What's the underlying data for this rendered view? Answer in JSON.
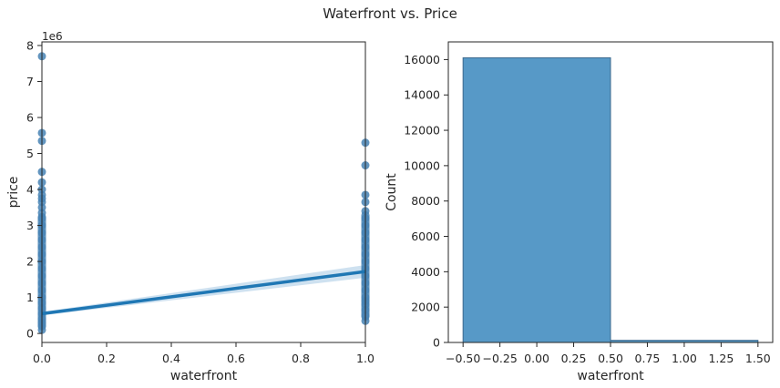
{
  "figure": {
    "title": "Waterfront vs. Price"
  },
  "chart_data": [
    {
      "type": "scatter",
      "xlabel": "waterfront",
      "ylabel": "price",
      "scale_label": "1e6",
      "xlim": [
        0,
        1
      ],
      "ylim": [
        -0.25,
        8.1
      ],
      "x_ticks": [
        0.0,
        0.2,
        0.4,
        0.6,
        0.8,
        1.0
      ],
      "x_tick_labels": [
        "0.0",
        "0.2",
        "0.4",
        "0.6",
        "0.8",
        "1.0"
      ],
      "y_ticks": [
        0,
        1,
        2,
        3,
        4,
        5,
        6,
        7,
        8
      ],
      "y_tick_labels": [
        "0",
        "1",
        "2",
        "3",
        "4",
        "5",
        "6",
        "7",
        "8"
      ],
      "grid": false,
      "point_color": "#4682b4",
      "line_color": "#1f77b4",
      "band_color": "#aecde6",
      "series": [
        {
          "x": [
            0,
            0,
            0,
            0,
            0,
            0,
            0,
            0,
            0,
            0,
            0,
            0,
            0,
            0,
            0,
            0,
            0,
            0,
            0,
            0,
            0,
            0,
            0,
            0,
            0,
            0,
            0,
            0,
            0,
            0,
            1,
            1,
            1,
            1,
            1,
            1,
            1,
            1,
            1,
            1,
            1,
            1,
            1,
            1,
            1,
            1,
            1,
            1,
            1,
            1,
            1,
            1
          ],
          "y": [
            7.7,
            5.57,
            5.35,
            4.49,
            4.2,
            4.0,
            3.85,
            3.75,
            3.65,
            3.5,
            3.35,
            3.2,
            3.0,
            2.8,
            2.6,
            2.4,
            2.2,
            2.0,
            1.8,
            1.6,
            1.4,
            1.2,
            1.0,
            0.85,
            0.7,
            0.55,
            0.4,
            0.3,
            0.2,
            0.1,
            5.3,
            4.67,
            3.85,
            3.65,
            3.4,
            3.2,
            3.0,
            2.8,
            2.6,
            2.4,
            2.2,
            2.0,
            1.8,
            1.6,
            1.4,
            1.2,
            1.0,
            0.9,
            0.8,
            0.65,
            0.5,
            0.35
          ]
        }
      ],
      "regression": {
        "x": [
          0,
          1
        ],
        "y": [
          0.55,
          1.72
        ],
        "ci_low": [
          0.5,
          1.55
        ],
        "ci_high": [
          0.6,
          1.9
        ]
      }
    },
    {
      "type": "bar",
      "xlabel": "waterfront",
      "ylabel": "Count",
      "xlim": [
        -0.6,
        1.6
      ],
      "ylim": [
        0,
        17000
      ],
      "x_ticks": [
        -0.5,
        -0.25,
        0.0,
        0.25,
        0.5,
        0.75,
        1.0,
        1.25,
        1.5
      ],
      "x_tick_labels": [
        "−0.50",
        "−0.25",
        "0.00",
        "0.25",
        "0.50",
        "0.75",
        "1.00",
        "1.25",
        "1.50"
      ],
      "y_ticks": [
        0,
        2000,
        4000,
        6000,
        8000,
        10000,
        12000,
        14000,
        16000
      ],
      "y_tick_labels": [
        "0",
        "2000",
        "4000",
        "6000",
        "8000",
        "10000",
        "12000",
        "14000",
        "16000"
      ],
      "grid": false,
      "bar_color": "#5799c7",
      "bar_edge": "#3d6a8e",
      "bins": [
        {
          "start": -0.5,
          "end": 0.5,
          "value": 16100
        },
        {
          "start": 0.5,
          "end": 1.5,
          "value": 120
        }
      ]
    }
  ]
}
